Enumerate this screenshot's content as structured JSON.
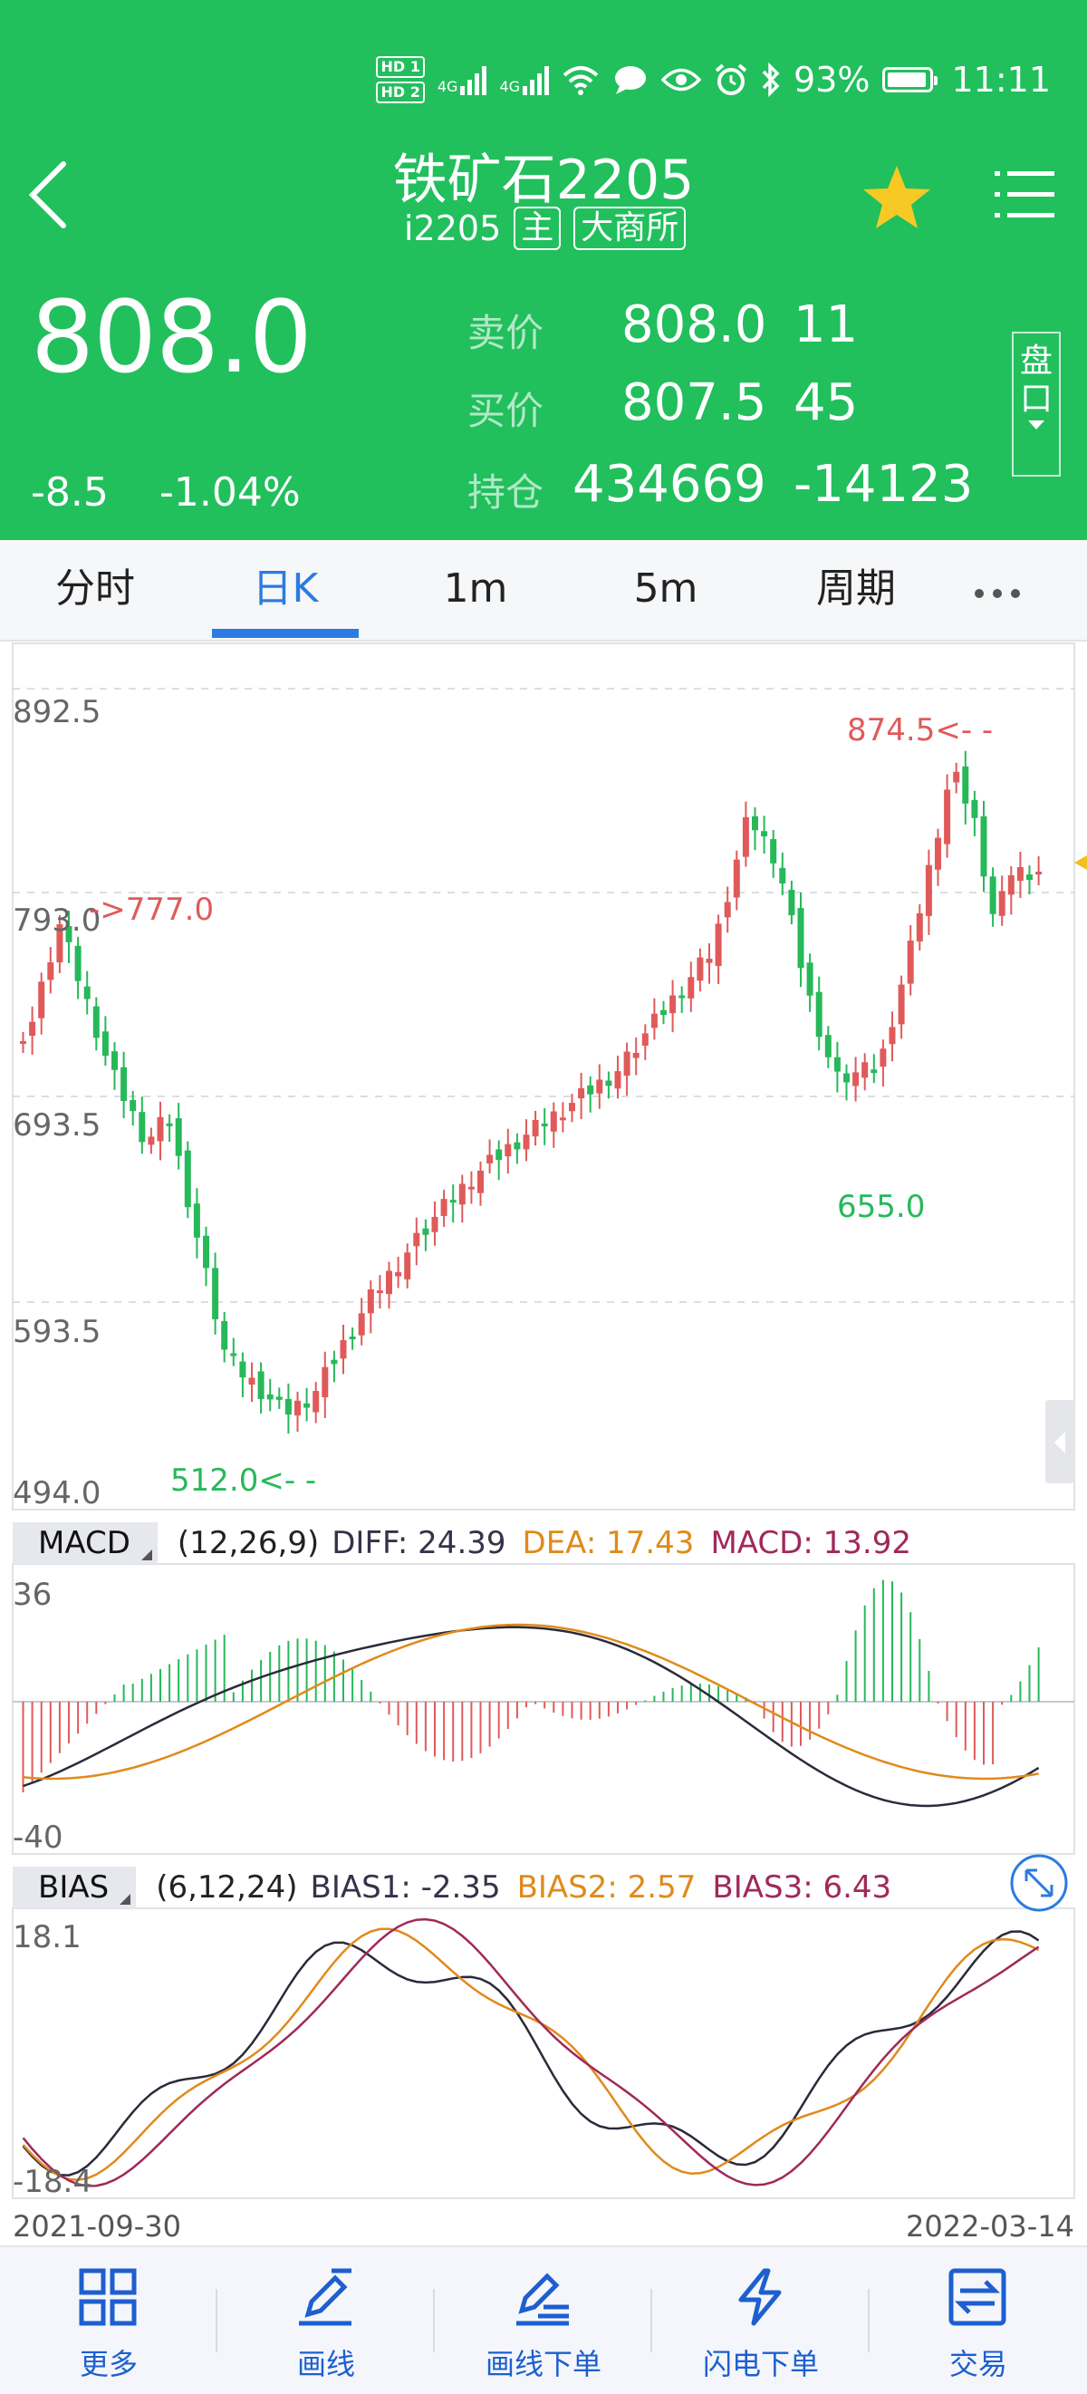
{
  "status_bar": {
    "hd1": "HD 1",
    "hd2": "HD 2",
    "net1": "4G",
    "net2": "4G",
    "battery": "93%",
    "time": "11:11"
  },
  "header": {
    "title": "铁矿石2205",
    "code": "i2205",
    "tag_main": "主",
    "exchange": "大商所",
    "last_price": "808.0",
    "change": "-8.5",
    "change_pct": "-1.04%",
    "ask_label": "卖价",
    "ask_price": "808.0",
    "ask_vol": "11",
    "bid_label": "买价",
    "bid_price": "807.5",
    "bid_vol": "45",
    "oi_label": "持仓",
    "oi": "434669",
    "oi_change": "-14123",
    "pankou_1": "盘",
    "pankou_2": "口",
    "icons": [
      "back-icon",
      "star-icon",
      "menu-icon"
    ]
  },
  "tabs": [
    {
      "label": "分时"
    },
    {
      "label": "日K"
    },
    {
      "label": "1m"
    },
    {
      "label": "5m"
    },
    {
      "label": "周期"
    }
  ],
  "price_chart": {
    "y_labels": [
      "892.5",
      "793.0",
      "693.5",
      "593.5",
      "494.0"
    ],
    "high_note": "874.5<- -",
    "low_note": "512.0<- -",
    "mid_low_note": "655.0",
    "left_note": "->777.0"
  },
  "macd": {
    "name": "MACD",
    "params": "(12,26,9)",
    "diff": "DIFF: 24.39",
    "dea": "DEA: 17.43",
    "macd": "MACD: 13.92",
    "y_top": "36",
    "y_bottom": "-40"
  },
  "bias": {
    "name": "BIAS",
    "params": "(6,12,24)",
    "bias1": "BIAS1: -2.35",
    "bias2": "BIAS2: 2.57",
    "bias3": "BIAS3: 6.43",
    "y_top": "18.1",
    "y_bottom": "-18.4"
  },
  "dates": {
    "start": "2021-09-30",
    "end": "2022-03-14"
  },
  "bottom_nav": [
    {
      "label": "更多",
      "icon": "grid-icon"
    },
    {
      "label": "画线",
      "icon": "pen-icon"
    },
    {
      "label": "画线下单",
      "icon": "pen-order-icon"
    },
    {
      "label": "闪电下单",
      "icon": "lightning-icon"
    },
    {
      "label": "交易",
      "icon": "trade-icon"
    }
  ],
  "colors": {
    "header_green": "#22bf5d",
    "up_red": "#e05a5a",
    "down_green": "#27b85a",
    "tab_blue": "#2b7be0",
    "dea_orange": "#e08a1a",
    "macd_purple": "#a0295a"
  }
}
